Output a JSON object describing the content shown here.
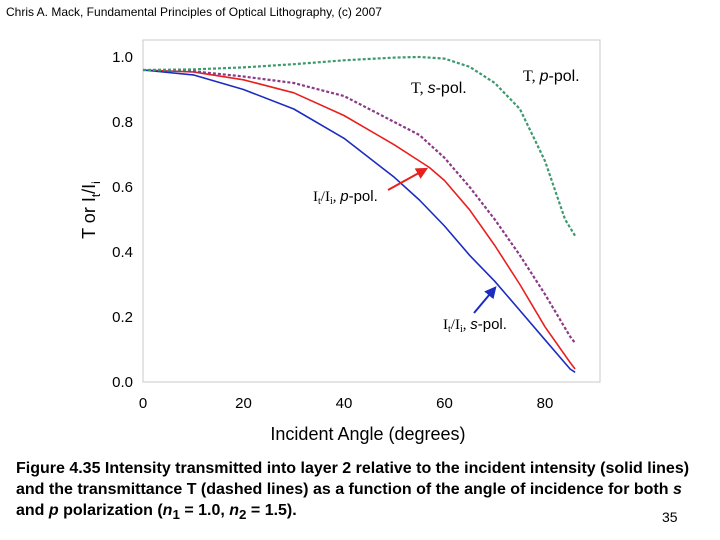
{
  "header": "Chris A. Mack, Fundamental Principles of Optical Lithography, (c) 2007",
  "caption": {
    "part1": "Figure 4.35  Intensity transmitted into layer 2 relative to the incident intensity (solid lines) and the transmittance T (dashed lines) as a function of the angle of incidence for both ",
    "s": "s",
    "and": " and ",
    "p": "p",
    "part2": " polarization (",
    "n1": "n",
    "n1_sub": "1",
    "n1_val": " = 1.0, ",
    "n2": "n",
    "n2_sub": "2",
    "n2_val": " = 1.5)."
  },
  "page_number": "35",
  "colors": {
    "red": "#e8201e",
    "blue": "#1c2cc0",
    "purple": "#8a3a86",
    "green": "#3d9a6e",
    "grid": "#c8c8c8"
  },
  "chart_data": {
    "type": "line",
    "xlabel": "Incident Angle (degrees)",
    "ylabel": "T or It/Ii",
    "xlim": [
      0,
      90
    ],
    "ylim": [
      0,
      1.0
    ],
    "x_ticks": [
      "0",
      "20",
      "40",
      "60",
      "80"
    ],
    "y_ticks": [
      "0.0",
      "0.2",
      "0.4",
      "0.6",
      "0.8",
      "1.0"
    ],
    "grid": false,
    "series": [
      {
        "name": "It/Ii, p-pol.",
        "style": "solid",
        "color": "#e8201e",
        "x": [
          0,
          10,
          20,
          30,
          40,
          50,
          55,
          57,
          60,
          65,
          70,
          75,
          80,
          85,
          86
        ],
        "y": [
          0.96,
          0.954,
          0.93,
          0.89,
          0.82,
          0.73,
          0.68,
          0.66,
          0.62,
          0.53,
          0.42,
          0.3,
          0.17,
          0.06,
          0.04
        ]
      },
      {
        "name": "It/Ii, s-pol.",
        "style": "solid",
        "color": "#1c2cc0",
        "x": [
          0,
          10,
          20,
          30,
          40,
          50,
          55,
          60,
          65,
          70,
          75,
          80,
          85,
          86
        ],
        "y": [
          0.96,
          0.945,
          0.9,
          0.84,
          0.75,
          0.63,
          0.56,
          0.48,
          0.39,
          0.31,
          0.22,
          0.13,
          0.04,
          0.03
        ]
      },
      {
        "name": "T, s-pol.",
        "style": "dashed",
        "color": "#8a3a86",
        "x": [
          0,
          10,
          20,
          30,
          40,
          50,
          55,
          60,
          65,
          70,
          75,
          80,
          85,
          86
        ],
        "y": [
          0.96,
          0.956,
          0.94,
          0.92,
          0.88,
          0.8,
          0.76,
          0.69,
          0.6,
          0.5,
          0.39,
          0.27,
          0.14,
          0.12
        ]
      },
      {
        "name": "T, p-pol.",
        "style": "dashed",
        "color": "#3d9a6e",
        "x": [
          0,
          10,
          20,
          30,
          40,
          50,
          55,
          60,
          65,
          70,
          75,
          80,
          84,
          86
        ],
        "y": [
          0.96,
          0.962,
          0.968,
          0.978,
          0.99,
          0.998,
          1.0,
          0.995,
          0.97,
          0.92,
          0.84,
          0.68,
          0.5,
          0.45
        ]
      }
    ],
    "annotations": {
      "t_p": {
        "main": "T, ",
        "ital": "p",
        "rest": "-pol."
      },
      "t_s": {
        "main": "T, ",
        "ital": "s",
        "rest": "-pol."
      },
      "it_p": {
        "main": "I",
        "sub1": "t",
        "mid": "/I",
        "sub2": "i",
        "sep": ", ",
        "ital": "p",
        "rest": "-pol."
      },
      "it_s": {
        "main": "I",
        "sub1": "t",
        "mid": "/I",
        "sub2": "i",
        "sep": ", ",
        "ital": "s",
        "rest": "-pol."
      }
    },
    "ylabel_parts": {
      "a": "T or I",
      "sub1": "t",
      "b": "/I",
      "sub2": "i"
    }
  }
}
